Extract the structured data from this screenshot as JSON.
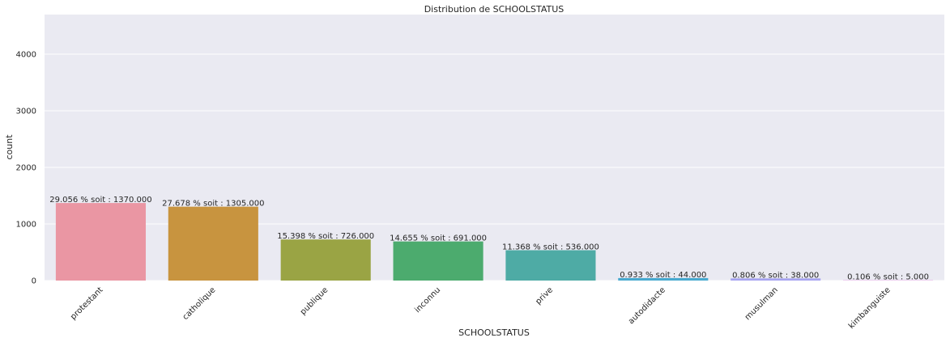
{
  "chart_data": {
    "type": "bar",
    "title": "Distribution de SCHOOLSTATUS",
    "xlabel": "SCHOOLSTATUS",
    "ylabel": "count",
    "ylim": [
      0,
      4700
    ],
    "yticks": [
      0,
      1000,
      2000,
      3000,
      4000
    ],
    "grid": true,
    "categories": [
      "protestant",
      "catholique",
      "publique",
      "inconnu",
      "prive",
      "autodidacte",
      "musulman",
      "kimbanguiste"
    ],
    "values": [
      1370,
      1305,
      726,
      691,
      536,
      44,
      38,
      5
    ],
    "bar_labels": [
      "29.056 % soit : 1370.000",
      "27.678 % soit : 1305.000",
      "15.398 % soit : 726.000",
      "14.655 % soit : 691.000",
      "11.368 % soit : 536.000",
      "0.933 % soit : 44.000",
      "0.806 % soit : 38.000",
      "0.106 % soit : 5.000"
    ],
    "colors": [
      "#ea96a3",
      "#c8943f",
      "#9aa444",
      "#4cab6e",
      "#4eaba5",
      "#47a9cf",
      "#a6a3f0",
      "#e48fe2"
    ],
    "background": "#eaeaf2"
  }
}
